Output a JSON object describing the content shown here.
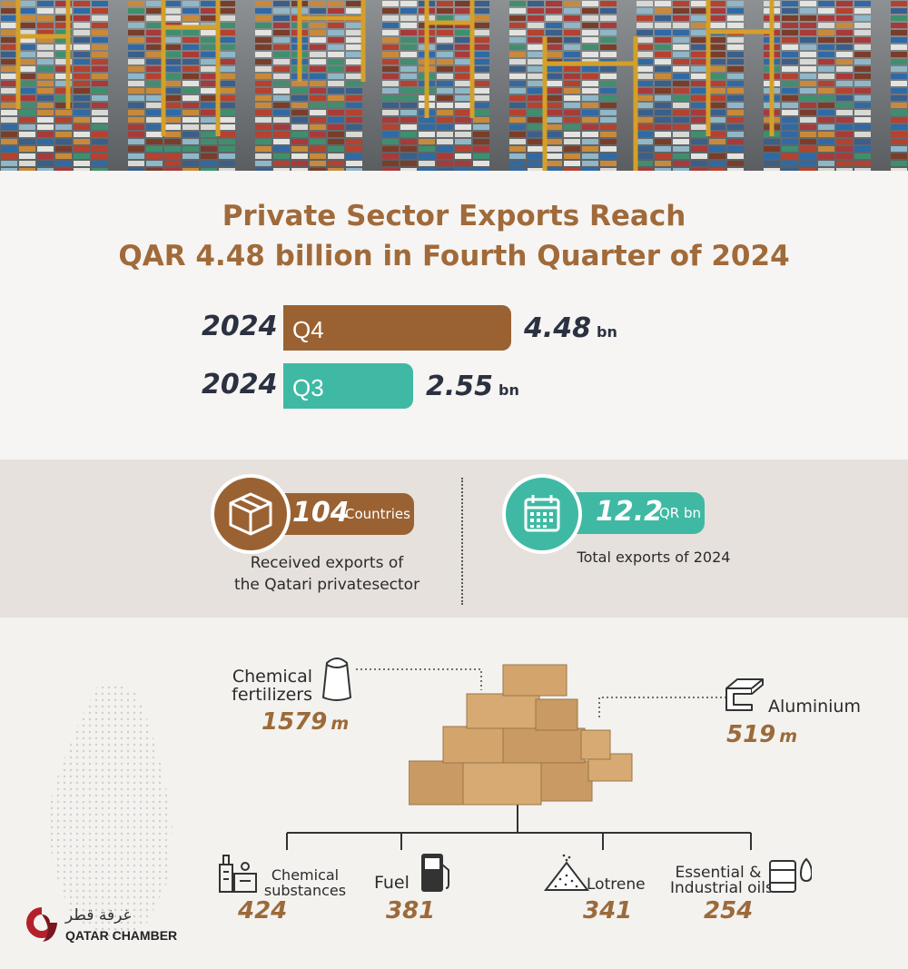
{
  "headline": {
    "line1": "Private Sector Exports Reach",
    "line2": "QAR 4.48 billion in Fourth Quarter of 2024"
  },
  "comparison": [
    {
      "year": "2024",
      "quarter": "Q4",
      "value": "4.48",
      "unit": "bn",
      "amount_bn": 4.48,
      "color": "#9a6233"
    },
    {
      "year": "2024",
      "quarter": "Q3",
      "value": "2.55",
      "unit": "bn",
      "amount_bn": 2.55,
      "color": "#3fb9a3"
    }
  ],
  "stats": {
    "countries": {
      "number": "104",
      "unit": "Countries",
      "desc_line1": "Received exports of",
      "desc_line2": "the Qatari privatesector",
      "icon": "box-icon",
      "color": "#9a6233"
    },
    "total": {
      "number": "12.2",
      "unit": "QR bn",
      "desc": "Total exports of 2024",
      "icon": "calendar-icon",
      "color": "#3fb9a3"
    }
  },
  "products": {
    "fertilizers": {
      "label_line1": "Chemical",
      "label_line2": "fertilizers",
      "value": "1579",
      "unit": "m",
      "icon": "sack-icon"
    },
    "aluminium": {
      "label": "Aluminium",
      "value": "519",
      "unit": "m",
      "icon": "aluminium-beam-icon"
    },
    "chemical_substances": {
      "label_line1": "Chemical",
      "label_line2": "substances",
      "value": "424",
      "icon": "factory-icon"
    },
    "fuel": {
      "label": "Fuel",
      "value": "381",
      "icon": "fuel-pump-icon"
    },
    "lotrene": {
      "label": "Lotrene",
      "value": "341",
      "icon": "pellets-pile-icon"
    },
    "oils": {
      "label_line1": "Essential &",
      "label_line2": "Industrial oils",
      "value": "254",
      "icon": "oil-drum-icon"
    }
  },
  "brand": {
    "arabic": "غرفة قطر",
    "english": "QATAR CHAMBER",
    "color": "#b3202b"
  }
}
